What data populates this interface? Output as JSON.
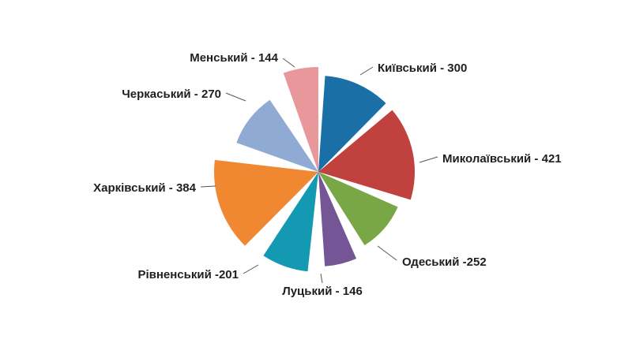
{
  "chart_data": {
    "type": "pie",
    "title": "",
    "categories": [
      "Київський",
      "Миколаївський",
      "Одеський",
      "Луцький",
      "Рівненський",
      "Харківський",
      "Черкаський",
      "Менський"
    ],
    "values": [
      300,
      421,
      252,
      146,
      201,
      384,
      270,
      144
    ],
    "labels": [
      "Київський - 300",
      "Миколаївський - 421",
      "Одеський -252",
      "Луцький - 146",
      "Рівненський -201",
      "Харківський - 384",
      "Черкаський - 270",
      "Менський - 144"
    ],
    "colors": [
      "#1a6fa6",
      "#c0413d",
      "#7aa745",
      "#745596",
      "#1399b1",
      "#f08731",
      "#8fabd4",
      "#e8989a"
    ],
    "legend": "none",
    "grid": false
  }
}
